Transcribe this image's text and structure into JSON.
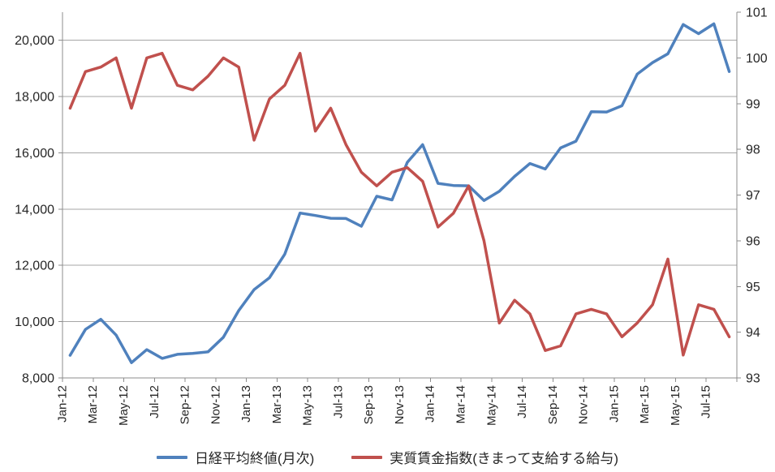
{
  "chart_data": {
    "type": "line",
    "title": "",
    "categories": [
      "Jan-12",
      "Feb-12",
      "Mar-12",
      "Apr-12",
      "May-12",
      "Jun-12",
      "Jul-12",
      "Aug-12",
      "Sep-12",
      "Oct-12",
      "Nov-12",
      "Dec-12",
      "Jan-13",
      "Feb-13",
      "Mar-13",
      "Apr-13",
      "May-13",
      "Jun-13",
      "Jul-13",
      "Aug-13",
      "Sep-13",
      "Oct-13",
      "Nov-13",
      "Dec-13",
      "Jan-14",
      "Feb-14",
      "Mar-14",
      "Apr-14",
      "May-14",
      "Jun-14",
      "Jul-14",
      "Aug-14",
      "Sep-14",
      "Oct-14",
      "Nov-14",
      "Dec-14",
      "Jan-15",
      "Feb-15",
      "Mar-15",
      "Apr-15",
      "May-15",
      "Jun-15",
      "Jul-15",
      "Aug-15"
    ],
    "x_tick_labels": [
      "Jan-12",
      "Mar-12",
      "May-12",
      "Jul-12",
      "Sep-12",
      "Nov-12",
      "Jan-13",
      "Mar-13",
      "May-13",
      "Jul-13",
      "Sep-13",
      "Nov-13",
      "Jan-14",
      "Mar-14",
      "May-14",
      "Jul-14",
      "Sep-14",
      "Nov-14",
      "Jan-15",
      "Mar-15",
      "May-15",
      "Jul-15"
    ],
    "series": [
      {
        "name": "日経平均終値(月次)",
        "axis": "left",
        "color": "#4F81BD",
        "values": [
          8803,
          9723,
          10084,
          9521,
          8543,
          9007,
          8695,
          8840,
          8870,
          8928,
          9446,
          10395,
          11139,
          11559,
          12398,
          13861,
          13775,
          13677,
          13668,
          13389,
          14456,
          14328,
          15662,
          16291,
          14915,
          14841,
          14828,
          14304,
          14632,
          15162,
          15621,
          15425,
          16174,
          16414,
          17460,
          17451,
          17674,
          18798,
          19207,
          19520,
          20563,
          20236,
          20585,
          18890
        ]
      },
      {
        "name": "実質賃金指数(きまって支給する給与)",
        "axis": "right",
        "color": "#C0504D",
        "values": [
          98.9,
          99.7,
          99.8,
          100.0,
          98.9,
          100.0,
          100.1,
          99.4,
          99.3,
          99.6,
          100.0,
          99.8,
          98.2,
          99.1,
          99.4,
          100.1,
          98.4,
          98.9,
          98.1,
          97.5,
          97.2,
          97.5,
          97.6,
          97.3,
          96.3,
          96.6,
          97.2,
          96.0,
          94.2,
          94.7,
          94.4,
          93.6,
          93.7,
          94.4,
          94.5,
          94.4,
          93.9,
          94.2,
          94.6,
          95.6,
          93.5,
          94.6,
          94.5,
          93.9
        ]
      }
    ],
    "left_axis": {
      "min": 8000,
      "max": 21000,
      "major_unit": 2000,
      "tick_labels": [
        "8,000",
        "10,000",
        "12,000",
        "14,000",
        "16,000",
        "18,000",
        "20,000"
      ]
    },
    "right_axis": {
      "min": 93,
      "max": 101,
      "major_unit": 1,
      "tick_labels": [
        "93",
        "94",
        "95",
        "96",
        "97",
        "98",
        "99",
        "100",
        "101"
      ]
    },
    "grid": true,
    "legend_position": "bottom"
  },
  "legend": {
    "items": [
      {
        "label": "日経平均終値(月次)",
        "color": "#4F81BD"
      },
      {
        "label": "実質賃金指数(きまって支給する給与)",
        "color": "#C0504D"
      }
    ]
  },
  "colors": {
    "series_nikkei": "#4F81BD",
    "series_wage": "#C0504D",
    "gridline": "#A6A6A6",
    "axis_line": "#8C8C8C",
    "text": "#262626",
    "background": "#FFFFFF"
  }
}
